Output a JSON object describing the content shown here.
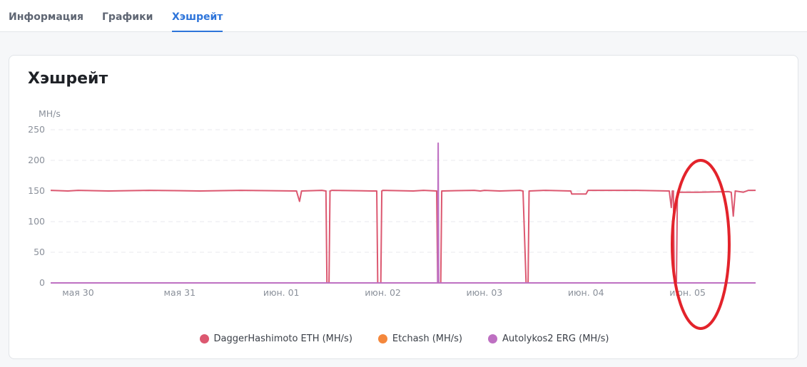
{
  "tabs": [
    {
      "label": "Информация"
    },
    {
      "label": "Графики"
    },
    {
      "label": "Хэшрейт"
    }
  ],
  "active_tab": 2,
  "card": {
    "title": "Хэшрейт"
  },
  "annotation_color": "#e3232b",
  "chart_data": {
    "type": "line",
    "title": "",
    "ylabel": "MH/s",
    "xlabel": "",
    "ylim": [
      0,
      250
    ],
    "x_range_days": [
      -0.27,
      6.67
    ],
    "y_ticks": [
      0,
      50,
      100,
      150,
      200,
      250
    ],
    "x_ticks": [
      {
        "x": 0,
        "label": "мая 30"
      },
      {
        "x": 1,
        "label": "мая 31"
      },
      {
        "x": 2,
        "label": "июн. 01"
      },
      {
        "x": 3,
        "label": "июн. 02"
      },
      {
        "x": 4,
        "label": "июн. 03"
      },
      {
        "x": 5,
        "label": "июн. 04"
      },
      {
        "x": 6,
        "label": "июн. 05"
      }
    ],
    "grid": true,
    "legend_position": "bottom",
    "series": [
      {
        "name": "DaggerHashimoto ETH (MH/s)",
        "color": "#dc5870",
        "points": [
          [
            -0.27,
            151
          ],
          [
            -0.1,
            150
          ],
          [
            0.0,
            151
          ],
          [
            0.3,
            150
          ],
          [
            0.7,
            151
          ],
          [
            1.2,
            150
          ],
          [
            1.6,
            151
          ],
          [
            2.15,
            150
          ],
          [
            2.18,
            133
          ],
          [
            2.2,
            150
          ],
          [
            2.4,
            151
          ],
          [
            2.44,
            150
          ],
          [
            2.45,
            0
          ],
          [
            2.47,
            0
          ],
          [
            2.48,
            150
          ],
          [
            2.5,
            151
          ],
          [
            2.9,
            150
          ],
          [
            2.94,
            150
          ],
          [
            2.95,
            0
          ],
          [
            2.98,
            0
          ],
          [
            2.99,
            150
          ],
          [
            3.0,
            151
          ],
          [
            3.3,
            150
          ],
          [
            3.4,
            151
          ],
          [
            3.53,
            150
          ],
          [
            3.54,
            0
          ],
          [
            3.57,
            0
          ],
          [
            3.58,
            150
          ],
          [
            3.9,
            151
          ],
          [
            3.96,
            150
          ],
          [
            4.0,
            151
          ],
          [
            4.15,
            150
          ],
          [
            4.35,
            151
          ],
          [
            4.38,
            150
          ],
          [
            4.41,
            0
          ],
          [
            4.43,
            0
          ],
          [
            4.44,
            150
          ],
          [
            4.6,
            151
          ],
          [
            4.85,
            150
          ],
          [
            4.86,
            145
          ],
          [
            5.0,
            145
          ],
          [
            5.02,
            151
          ],
          [
            5.5,
            151
          ],
          [
            5.82,
            150
          ],
          [
            5.84,
            123
          ],
          [
            5.85,
            150
          ],
          [
            5.86,
            150
          ],
          [
            5.87,
            0
          ],
          [
            5.89,
            0
          ],
          [
            5.9,
            148
          ],
          [
            6.1,
            148
          ],
          [
            6.4,
            149
          ],
          [
            6.43,
            148
          ],
          [
            6.45,
            109
          ],
          [
            6.47,
            150
          ],
          [
            6.55,
            148
          ],
          [
            6.6,
            151
          ],
          [
            6.67,
            151
          ]
        ]
      },
      {
        "name": "Etchash (MH/s)",
        "color": "#f4873c",
        "points": [
          [
            -0.27,
            0
          ],
          [
            6.67,
            0
          ]
        ]
      },
      {
        "name": "Autolykos2 ERG (MH/s)",
        "color": "#be70c2",
        "points": [
          [
            -0.27,
            0
          ],
          [
            3.54,
            0
          ],
          [
            3.545,
            228
          ],
          [
            3.55,
            0
          ],
          [
            6.67,
            0
          ]
        ]
      }
    ]
  }
}
